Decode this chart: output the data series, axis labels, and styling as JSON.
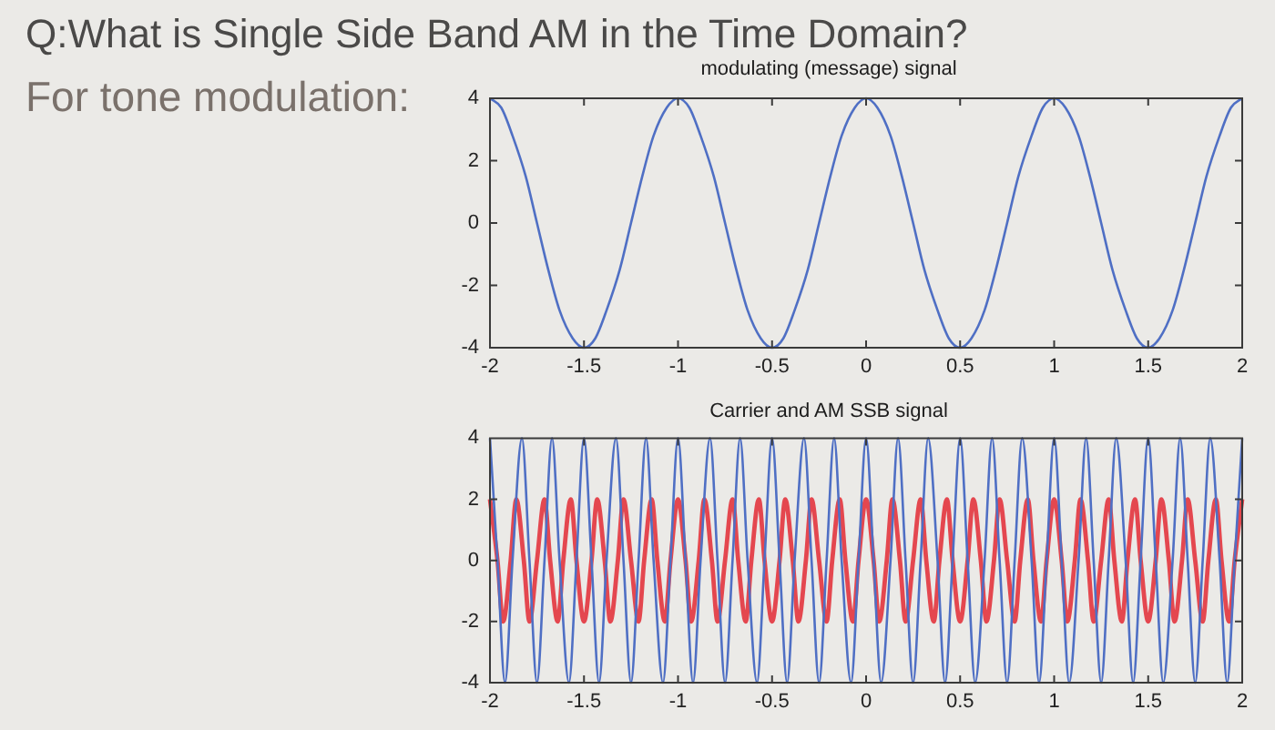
{
  "chart_data": [
    {
      "type": "other",
      "title": "Q:What is Single Side Band AM in the Time Domain?",
      "subtitle": "For tone modulation:"
    },
    {
      "type": "line",
      "title": "modulating (message) signal",
      "x": [
        -2,
        -1.94,
        -1.88,
        -1.81,
        -1.75,
        -1.69,
        -1.63,
        -1.56,
        -1.5,
        -1.44,
        -1.38,
        -1.31,
        -1.25,
        -1.19,
        -1.13,
        -1.06,
        -1,
        -0.94,
        -0.88,
        -0.81,
        -0.75,
        -0.69,
        -0.63,
        -0.56,
        -0.5,
        -0.44,
        -0.38,
        -0.31,
        -0.25,
        -0.19,
        -0.13,
        -0.06,
        0,
        0.06,
        0.13,
        0.19,
        0.25,
        0.31,
        0.38,
        0.44,
        0.5,
        0.56,
        0.63,
        0.69,
        0.75,
        0.81,
        0.88,
        0.94,
        1,
        1.06,
        1.13,
        1.19,
        1.25,
        1.31,
        1.38,
        1.44,
        1.5,
        1.56,
        1.63,
        1.69,
        1.75,
        1.81,
        1.88,
        1.94,
        2
      ],
      "series": [
        {
          "color": "#4f6fc4",
          "values": [
            4,
            3.7,
            2.8,
            1.5,
            0,
            -1.5,
            -2.8,
            -3.7,
            -4,
            -3.7,
            -2.8,
            -1.5,
            0,
            1.5,
            2.8,
            3.7,
            4,
            3.7,
            2.8,
            1.5,
            0,
            -1.5,
            -2.8,
            -3.7,
            -4,
            -3.7,
            -2.8,
            -1.5,
            0,
            1.5,
            2.8,
            3.7,
            4,
            3.7,
            2.8,
            1.5,
            0,
            -1.5,
            -2.8,
            -3.7,
            -4,
            -3.7,
            -2.8,
            -1.5,
            0,
            1.5,
            2.8,
            3.7,
            4,
            3.7,
            2.8,
            1.5,
            0,
            -1.5,
            -2.8,
            -3.7,
            -4,
            -3.7,
            -2.8,
            -1.5,
            0,
            1.5,
            2.8,
            3.7,
            4
          ]
        }
      ],
      "xlim": [
        -2,
        2
      ],
      "xticks": [
        -2,
        -1.5,
        -1,
        -0.5,
        0,
        0.5,
        1,
        1.5,
        2
      ],
      "ylim": [
        -4,
        4
      ],
      "yticks": [
        -4,
        -2,
        0,
        2,
        4
      ]
    },
    {
      "type": "line",
      "title": "Carrier and AM SSB signal",
      "series": [
        {
          "color": "#4f6fc4",
          "x": [
            -2,
            -1.96,
            -1.92,
            -1.88,
            -1.83,
            -1.79,
            -1.75,
            -1.71,
            -1.67,
            -1.63,
            -1.58,
            -1.54,
            -1.5,
            -1.46,
            -1.42,
            -1.38,
            -1.33,
            -1.29,
            -1.25,
            -1.21,
            -1.17,
            -1.13,
            -1.08,
            -1.04,
            -1,
            -0.96,
            -0.92,
            -0.88,
            -0.83,
            -0.79,
            -0.75,
            -0.71,
            -0.67,
            -0.63,
            -0.58,
            -0.54,
            -0.5,
            -0.46,
            -0.42,
            -0.38,
            -0.33,
            -0.29,
            -0.25,
            -0.21,
            -0.17,
            -0.13,
            -0.08,
            -0.04,
            0,
            0.04,
            0.08,
            0.13,
            0.17,
            0.21,
            0.25,
            0.29,
            0.33,
            0.38,
            0.42,
            0.46,
            0.5,
            0.54,
            0.58,
            0.63,
            0.67,
            0.71,
            0.75,
            0.79,
            0.83,
            0.88,
            0.92,
            0.96,
            1,
            1.04,
            1.08,
            1.13,
            1.17,
            1.21,
            1.25,
            1.29,
            1.33,
            1.38,
            1.42,
            1.46,
            1.5,
            1.54,
            1.58,
            1.63,
            1.67,
            1.71,
            1.75,
            1.79,
            1.83,
            1.88,
            1.92,
            1.96,
            2
          ],
          "values": [
            4,
            0,
            -4,
            0,
            4,
            0,
            -4,
            0,
            4,
            0,
            -4,
            0,
            4,
            0,
            -4,
            0,
            4,
            0,
            -4,
            0,
            4,
            0,
            -4,
            0,
            4,
            0,
            -4,
            0,
            4,
            0,
            -4,
            0,
            4,
            0,
            -4,
            0,
            4,
            0,
            -4,
            0,
            4,
            0,
            -4,
            0,
            4,
            0,
            -4,
            0,
            4,
            0,
            -4,
            0,
            4,
            0,
            -4,
            0,
            4,
            0,
            -4,
            0,
            4,
            0,
            -4,
            0,
            4,
            0,
            -4,
            0,
            4,
            0,
            -4,
            0,
            4,
            0,
            -4,
            0,
            4,
            0,
            -4,
            0,
            4,
            0,
            -4,
            0,
            4,
            0,
            -4,
            0,
            4,
            0,
            -4,
            0,
            4,
            0,
            -4,
            0,
            4
          ]
        },
        {
          "color": "#e4474f",
          "x": [
            -2,
            -1.96,
            -1.93,
            -1.89,
            -1.86,
            -1.82,
            -1.79,
            -1.75,
            -1.71,
            -1.68,
            -1.64,
            -1.61,
            -1.57,
            -1.54,
            -1.5,
            -1.46,
            -1.43,
            -1.39,
            -1.36,
            -1.32,
            -1.29,
            -1.25,
            -1.21,
            -1.18,
            -1.14,
            -1.11,
            -1.07,
            -1.04,
            -1,
            -0.96,
            -0.93,
            -0.89,
            -0.86,
            -0.82,
            -0.79,
            -0.75,
            -0.71,
            -0.68,
            -0.64,
            -0.61,
            -0.57,
            -0.54,
            -0.5,
            -0.46,
            -0.43,
            -0.39,
            -0.36,
            -0.32,
            -0.29,
            -0.25,
            -0.21,
            -0.18,
            -0.14,
            -0.11,
            -0.07,
            -0.04,
            0,
            0.04,
            0.07,
            0.11,
            0.14,
            0.18,
            0.21,
            0.25,
            0.29,
            0.32,
            0.36,
            0.39,
            0.43,
            0.46,
            0.5,
            0.54,
            0.57,
            0.61,
            0.64,
            0.68,
            0.71,
            0.75,
            0.79,
            0.82,
            0.86,
            0.89,
            0.93,
            0.96,
            1,
            1.04,
            1.07,
            1.11,
            1.14,
            1.18,
            1.21,
            1.25,
            1.29,
            1.32,
            1.36,
            1.39,
            1.43,
            1.46,
            1.5,
            1.54,
            1.57,
            1.61,
            1.64,
            1.68,
            1.71,
            1.75,
            1.79,
            1.82,
            1.86,
            1.89,
            1.93,
            1.96,
            2
          ],
          "values": [
            2,
            0,
            -2,
            0,
            2,
            0,
            -2,
            0,
            2,
            0,
            -2,
            0,
            2,
            0,
            -2,
            0,
            2,
            0,
            -2,
            0,
            2,
            0,
            -2,
            0,
            2,
            0,
            -2,
            0,
            2,
            0,
            -2,
            0,
            2,
            0,
            -2,
            0,
            2,
            0,
            -2,
            0,
            2,
            0,
            -2,
            0,
            2,
            0,
            -2,
            0,
            2,
            0,
            -2,
            0,
            2,
            0,
            -2,
            0,
            2,
            0,
            -2,
            0,
            2,
            0,
            -2,
            0,
            2,
            0,
            -2,
            0,
            2,
            0,
            -2,
            0,
            2,
            0,
            -2,
            0,
            2,
            0,
            -2,
            0,
            2,
            0,
            -2,
            0,
            2,
            0,
            -2,
            0,
            2,
            0,
            -2,
            0,
            2,
            0,
            -2,
            0,
            2,
            0,
            -2,
            0,
            2,
            0,
            -2,
            0,
            2,
            0,
            -2,
            0,
            2,
            0,
            -2,
            0,
            2
          ]
        }
      ],
      "xlim": [
        -2,
        2
      ],
      "xticks": [
        -2,
        -1.5,
        -1,
        -0.5,
        0,
        0.5,
        1,
        1.5,
        2
      ],
      "ylim": [
        -4,
        4
      ],
      "yticks": [
        -4,
        -2,
        0,
        2,
        4
      ]
    }
  ]
}
